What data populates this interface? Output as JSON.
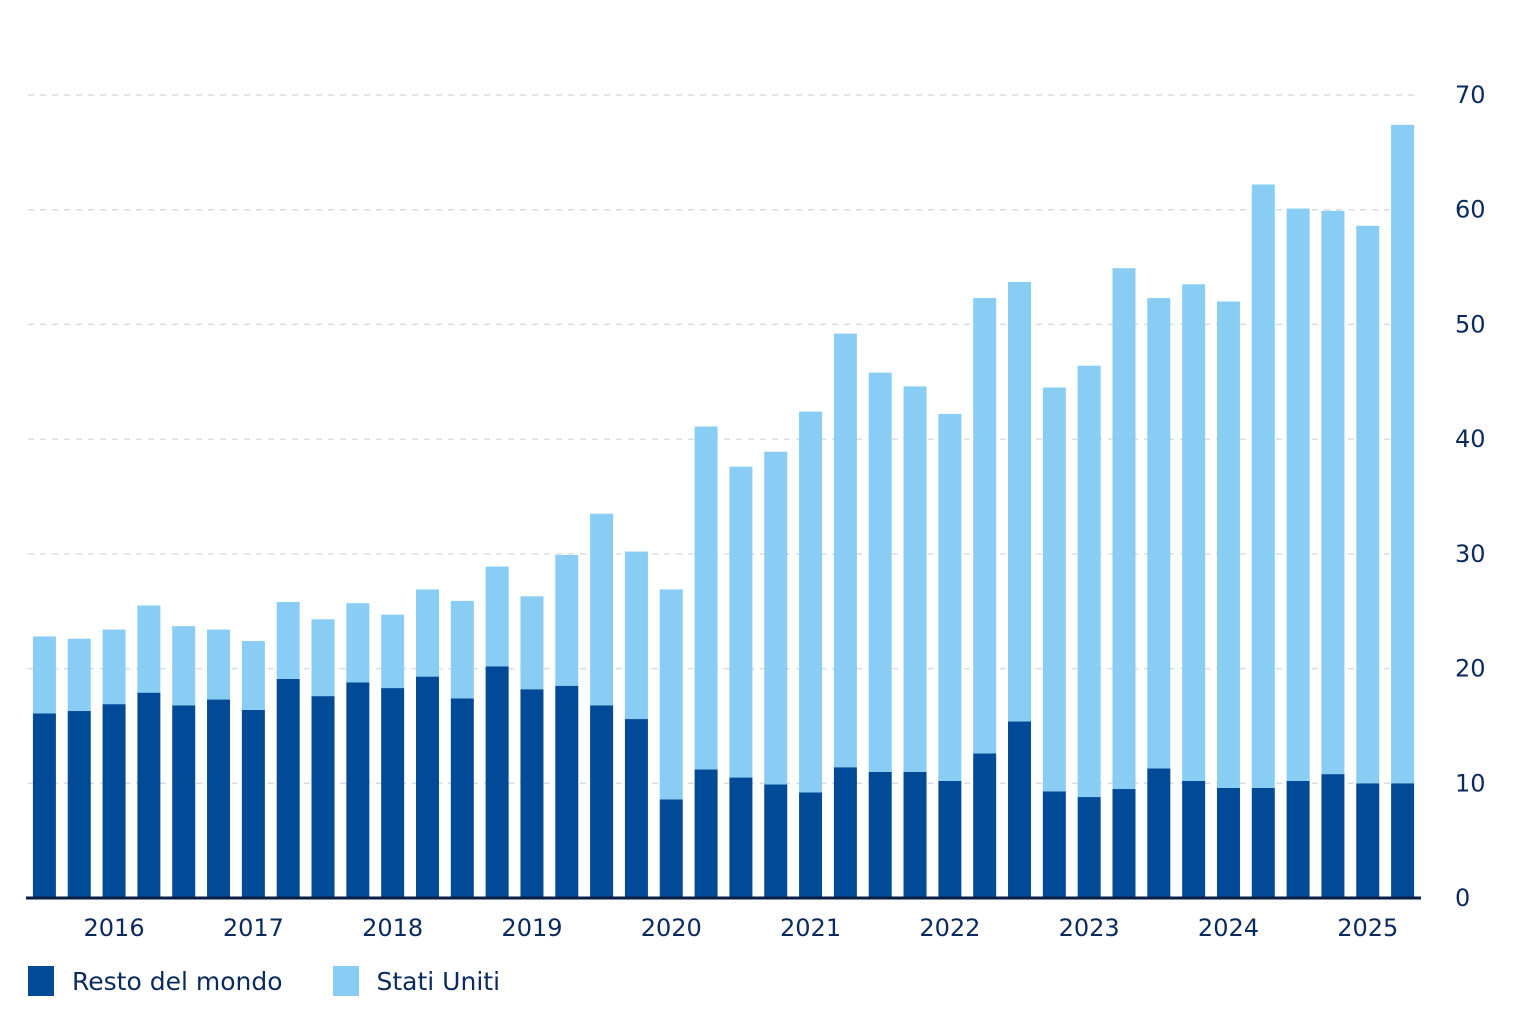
{
  "chart_data": {
    "type": "bar",
    "stacked": true,
    "title": "",
    "xlabel": "",
    "ylabel": "",
    "ylim": [
      0,
      70
    ],
    "yticks": [
      0,
      10,
      20,
      30,
      40,
      50,
      60,
      70
    ],
    "y_axis_side": "right",
    "grid": "horizontal dashed",
    "legend_position": "bottom-left",
    "x_tick_labels": [
      "2016",
      "2017",
      "2018",
      "2019",
      "2020",
      "2021",
      "2022",
      "2023",
      "2024",
      "2025"
    ],
    "x_tick_label_bar_index": [
      2,
      6,
      10,
      14,
      18,
      22,
      26,
      30,
      34,
      38
    ],
    "bar_count": 40,
    "series": [
      {
        "name": "Resto del mondo",
        "color": "#004a97",
        "values": [
          16.1,
          16.3,
          16.9,
          17.9,
          16.8,
          17.3,
          16.4,
          19.1,
          17.6,
          18.8,
          18.3,
          19.3,
          17.4,
          20.2,
          18.2,
          18.5,
          16.8,
          15.6,
          8.6,
          11.2,
          10.5,
          9.9,
          9.2,
          11.4,
          11.0,
          11.0,
          10.2,
          12.6,
          15.4,
          9.3,
          8.8,
          9.5,
          11.3,
          10.2,
          9.6,
          9.6,
          10.2,
          10.8,
          10.0,
          10.0
        ]
      },
      {
        "name": "Stati Uniti",
        "color": "#89cdf5",
        "values": [
          6.7,
          6.3,
          6.5,
          7.6,
          6.9,
          6.1,
          6.0,
          6.7,
          6.7,
          6.9,
          6.4,
          7.6,
          8.5,
          8.7,
          8.1,
          11.4,
          16.7,
          14.6,
          18.3,
          29.9,
          27.1,
          29.0,
          33.2,
          37.8,
          34.8,
          33.6,
          32.0,
          39.7,
          38.3,
          35.2,
          37.6,
          45.4,
          41.0,
          43.3,
          42.4,
          52.6,
          49.9,
          49.1,
          48.6,
          57.4
        ]
      }
    ]
  },
  "legend": {
    "items": [
      {
        "label": "Resto del mondo",
        "color": "#004a97"
      },
      {
        "label": "Stati Uniti",
        "color": "#89cdf5"
      }
    ]
  }
}
